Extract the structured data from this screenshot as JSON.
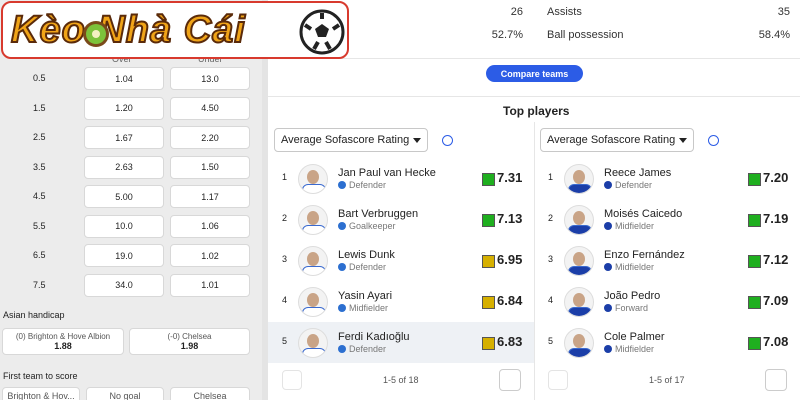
{
  "logo": "Kèo Nhà Cái",
  "odds": {
    "headers": [
      "Over",
      "Under"
    ],
    "rows": [
      [
        "0.5",
        "1.04",
        "13.0"
      ],
      [
        "1.5",
        "1.20",
        "4.50"
      ],
      [
        "2.5",
        "1.67",
        "2.20"
      ],
      [
        "3.5",
        "2.63",
        "1.50"
      ],
      [
        "4.5",
        "5.00",
        "1.17"
      ],
      [
        "5.5",
        "10.0",
        "1.06"
      ],
      [
        "6.5",
        "19.0",
        "1.02"
      ],
      [
        "7.5",
        "34.0",
        "1.01"
      ]
    ]
  },
  "asian_handicap": {
    "title": "Asian handicap",
    "options": [
      {
        "label": "(0) Brighton & Hove Albion",
        "odds": "1.88"
      },
      {
        "label": "(-0) Chelsea",
        "odds": "1.98"
      }
    ]
  },
  "first_team_to_score": {
    "title": "First team to score",
    "options": [
      "Brighton & Hov...",
      "No goal",
      "Chelsea"
    ]
  },
  "stats": {
    "left_values": [
      "26",
      "52.7%"
    ],
    "right": [
      {
        "label": "Assists",
        "value": "35"
      },
      {
        "label": "Ball possession",
        "value": "58.4%"
      }
    ]
  },
  "compare_button": "Compare teams",
  "top_players": {
    "title": "Top players",
    "lists": [
      {
        "dropdown": "Average Sofascore Rating",
        "pagination": "1-5 of 18",
        "players": [
          {
            "rank": "1",
            "name": "Jan Paul van Hecke",
            "position": "Defender",
            "rating": "7.31",
            "rating_color": "#1faf1f"
          },
          {
            "rank": "2",
            "name": "Bart Verbruggen",
            "position": "Goalkeeper",
            "rating": "7.13",
            "rating_color": "#1faf1f"
          },
          {
            "rank": "3",
            "name": "Lewis Dunk",
            "position": "Defender",
            "rating": "6.95",
            "rating_color": "#d6b000"
          },
          {
            "rank": "4",
            "name": "Yasin Ayari",
            "position": "Midfielder",
            "rating": "6.84",
            "rating_color": "#d6b000"
          },
          {
            "rank": "5",
            "name": "Ferdi Kadıoğlu",
            "position": "Defender",
            "rating": "6.83",
            "rating_color": "#d6b000"
          }
        ]
      },
      {
        "dropdown": "Average Sofascore Rating",
        "pagination": "1-5 of 17",
        "players": [
          {
            "rank": "1",
            "name": "Reece James",
            "position": "Defender",
            "rating": "7.20",
            "rating_color": "#1faf1f"
          },
          {
            "rank": "2",
            "name": "Moisés Caicedo",
            "position": "Midfielder",
            "rating": "7.19",
            "rating_color": "#1faf1f"
          },
          {
            "rank": "3",
            "name": "Enzo Fernández",
            "position": "Midfielder",
            "rating": "7.12",
            "rating_color": "#1faf1f"
          },
          {
            "rank": "4",
            "name": "João Pedro",
            "position": "Forward",
            "rating": "7.09",
            "rating_color": "#1faf1f"
          },
          {
            "rank": "5",
            "name": "Cole Palmer",
            "position": "Midfielder",
            "rating": "7.08",
            "rating_color": "#1faf1f"
          }
        ]
      }
    ]
  }
}
